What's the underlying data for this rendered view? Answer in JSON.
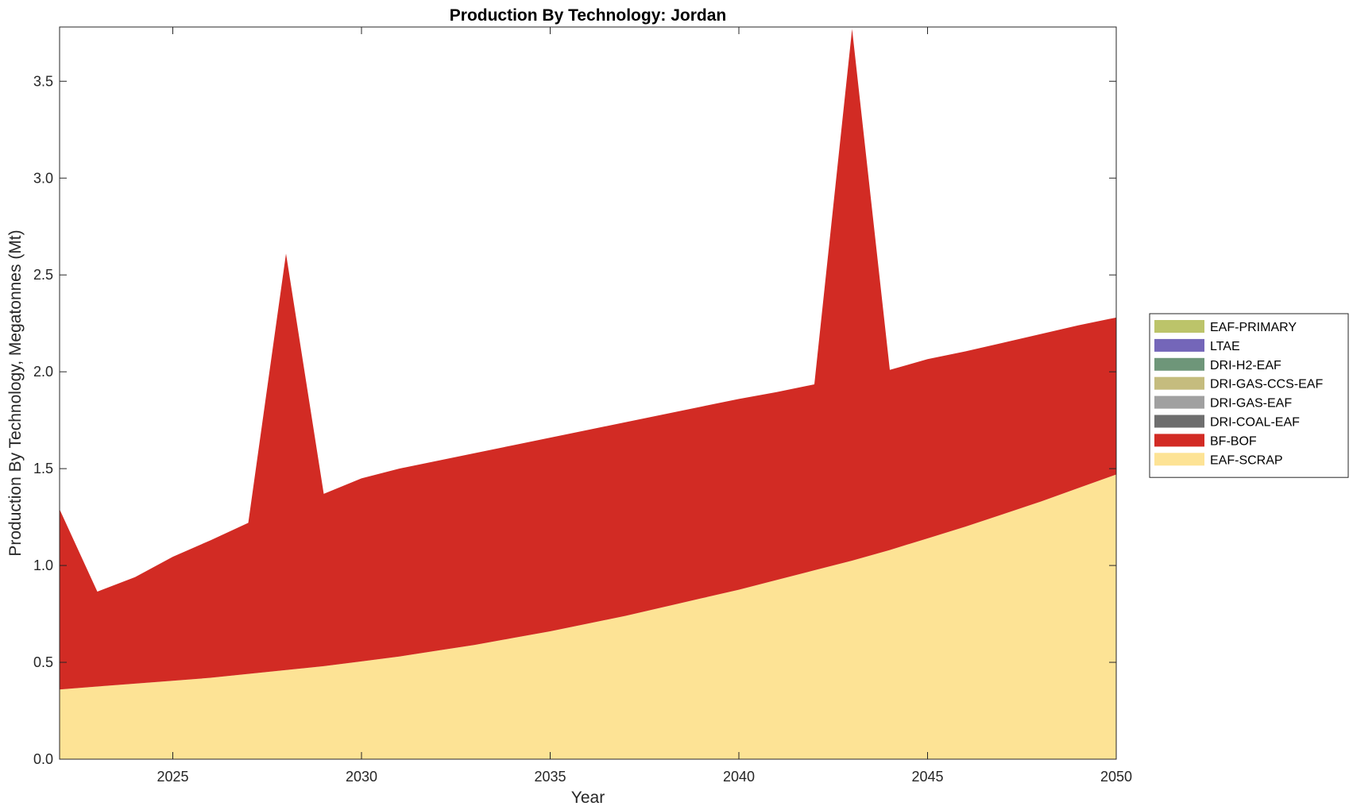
{
  "chart_data": {
    "type": "area",
    "stacked": true,
    "title": "Production By Technology: Jordan",
    "xlabel": "Year",
    "ylabel": "Production By Technology, Megatonnes (Mt)",
    "xlim": [
      2022,
      2050
    ],
    "ylim": [
      0,
      3.78
    ],
    "xticks": [
      2025,
      2030,
      2035,
      2040,
      2045,
      2050
    ],
    "yticks": [
      0.0,
      0.5,
      1.0,
      1.5,
      2.0,
      2.5,
      3.0,
      3.5
    ],
    "ytick_labels": [
      "0.0",
      "0.5",
      "1.0",
      "1.5",
      "2.0",
      "2.5",
      "3.0",
      "3.5"
    ],
    "grid": false,
    "legend_position": "right",
    "x": [
      2022,
      2023,
      2024,
      2025,
      2026,
      2027,
      2028,
      2029,
      2030,
      2031,
      2032,
      2033,
      2034,
      2035,
      2036,
      2037,
      2038,
      2039,
      2040,
      2041,
      2042,
      2043,
      2044,
      2045,
      2046,
      2047,
      2048,
      2049,
      2050
    ],
    "series": [
      {
        "name": "EAF-SCRAP",
        "color": "#FDE395",
        "values": [
          0.36,
          0.375,
          0.39,
          0.405,
          0.42,
          0.44,
          0.46,
          0.48,
          0.505,
          0.53,
          0.56,
          0.59,
          0.625,
          0.66,
          0.7,
          0.74,
          0.785,
          0.83,
          0.875,
          0.925,
          0.975,
          1.025,
          1.08,
          1.14,
          1.2,
          1.265,
          1.33,
          1.4,
          1.47
        ]
      },
      {
        "name": "BF-BOF",
        "color": "#D22B24",
        "values": [
          0.93,
          0.49,
          0.55,
          0.64,
          0.71,
          0.78,
          2.15,
          0.89,
          0.945,
          0.97,
          0.98,
          0.99,
          0.995,
          1.0,
          1.0,
          1.0,
          0.995,
          0.99,
          0.985,
          0.97,
          0.96,
          2.745,
          0.93,
          0.925,
          0.905,
          0.885,
          0.865,
          0.84,
          0.81
        ]
      },
      {
        "name": "DRI-COAL-EAF",
        "color": "#6E6E6E",
        "values": [
          0,
          0,
          0,
          0,
          0,
          0,
          0,
          0,
          0,
          0,
          0,
          0,
          0,
          0,
          0,
          0,
          0,
          0,
          0,
          0,
          0,
          0,
          0,
          0,
          0,
          0,
          0,
          0,
          0
        ]
      },
      {
        "name": "DRI-GAS-EAF",
        "color": "#A0A0A0",
        "values": [
          0,
          0,
          0,
          0,
          0,
          0,
          0,
          0,
          0,
          0,
          0,
          0,
          0,
          0,
          0,
          0,
          0,
          0,
          0,
          0,
          0,
          0,
          0,
          0,
          0,
          0,
          0,
          0,
          0
        ]
      },
      {
        "name": "DRI-GAS-CCS-EAF",
        "color": "#C5BC7E",
        "values": [
          0,
          0,
          0,
          0,
          0,
          0,
          0,
          0,
          0,
          0,
          0,
          0,
          0,
          0,
          0,
          0,
          0,
          0,
          0,
          0,
          0,
          0,
          0,
          0,
          0,
          0,
          0,
          0,
          0
        ]
      },
      {
        "name": "DRI-H2-EAF",
        "color": "#6E9679",
        "values": [
          0,
          0,
          0,
          0,
          0,
          0,
          0,
          0,
          0,
          0,
          0,
          0,
          0,
          0,
          0,
          0,
          0,
          0,
          0,
          0,
          0,
          0,
          0,
          0,
          0,
          0,
          0,
          0,
          0
        ]
      },
      {
        "name": "LTAE",
        "color": "#7466B9",
        "values": [
          0,
          0,
          0,
          0,
          0,
          0,
          0,
          0,
          0,
          0,
          0,
          0,
          0,
          0,
          0,
          0,
          0,
          0,
          0,
          0,
          0,
          0,
          0,
          0,
          0,
          0,
          0,
          0,
          0
        ]
      },
      {
        "name": "EAF-PRIMARY",
        "color": "#BCC46A",
        "values": [
          0,
          0,
          0,
          0,
          0,
          0,
          0,
          0,
          0,
          0,
          0,
          0,
          0,
          0,
          0,
          0,
          0,
          0,
          0,
          0,
          0,
          0,
          0,
          0,
          0,
          0,
          0,
          0,
          0
        ]
      }
    ],
    "legend": [
      "EAF-PRIMARY",
      "LTAE",
      "DRI-H2-EAF",
      "DRI-GAS-CCS-EAF",
      "DRI-GAS-EAF",
      "DRI-COAL-EAF",
      "BF-BOF",
      "EAF-SCRAP"
    ]
  }
}
